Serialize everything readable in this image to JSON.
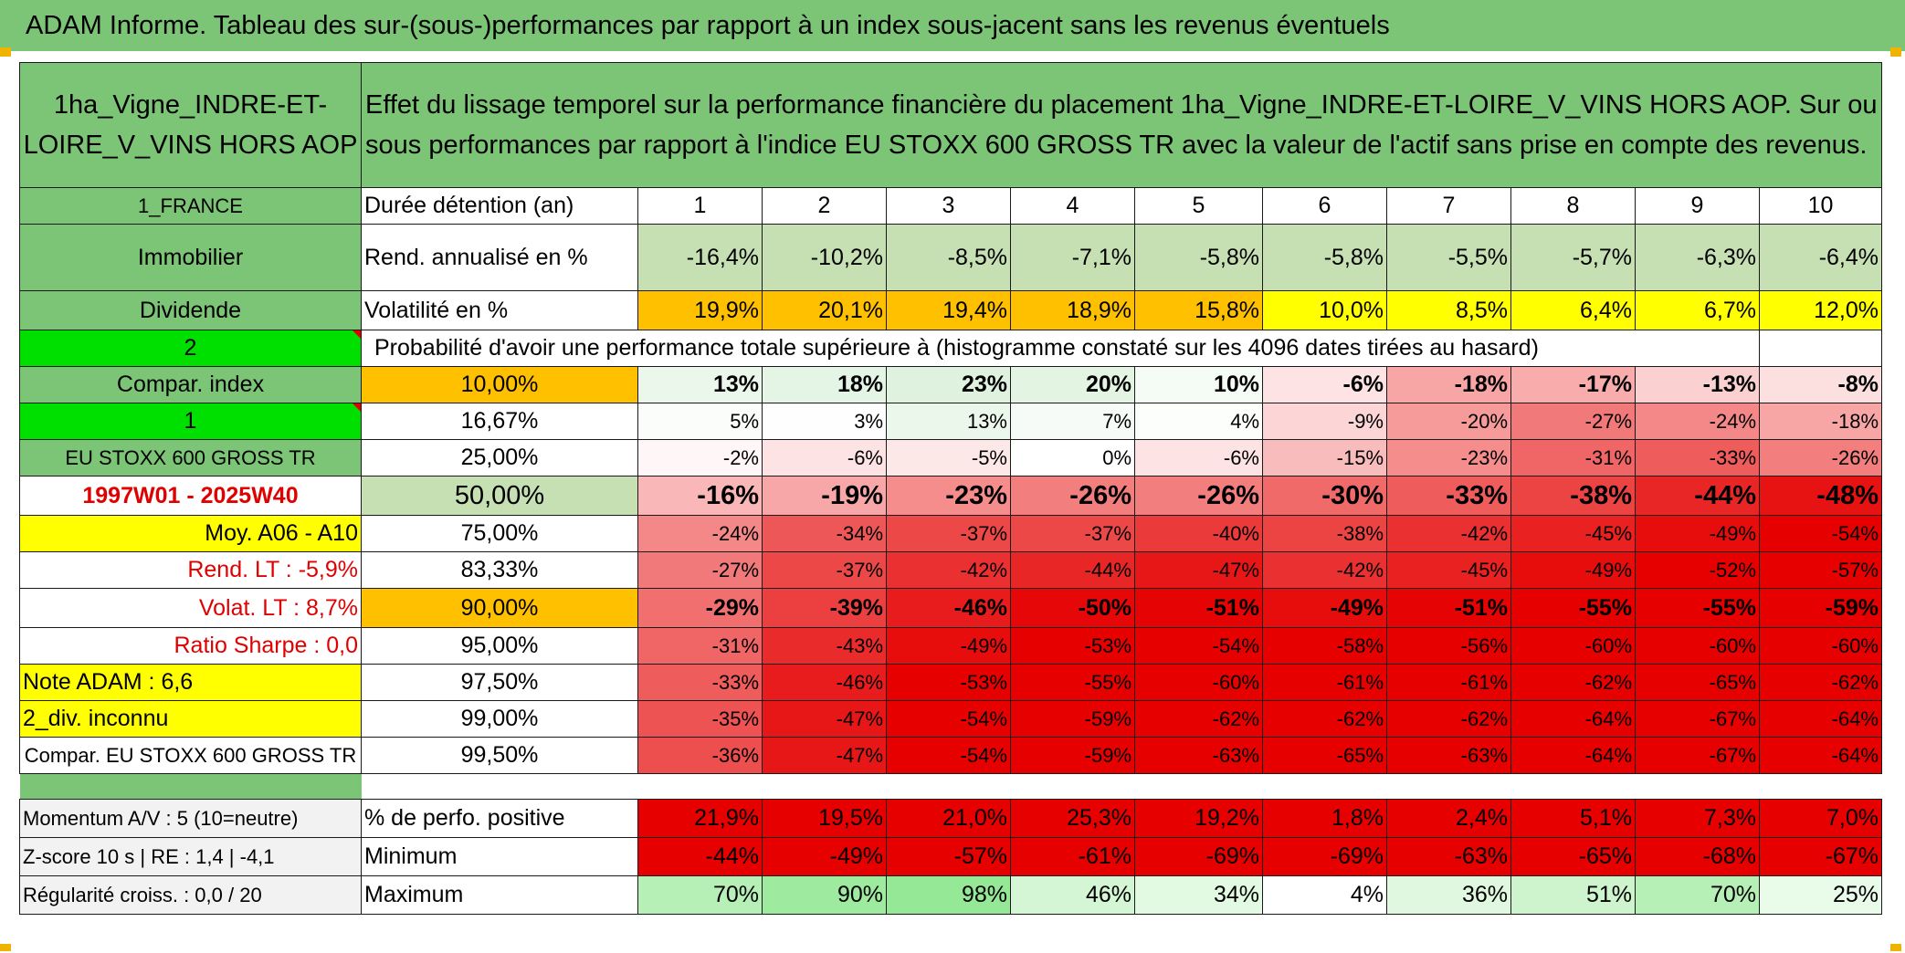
{
  "title": "ADAM Informe. Tableau des sur-(sous-)performances par rapport à un index sous-jacent sans les revenus éventuels",
  "asset_name": "1ha_Vigne_INDRE-ET-LOIRE_V_VINS HORS AOP",
  "description": "Effet du lissage temporel sur la performance financière du placement 1ha_Vigne_INDRE-ET-LOIRE_V_VINS HORS AOP. Sur ou sous performances par rapport à l'indice EU STOXX 600 GROSS TR avec la valeur de l'actif sans prise en compte des revenus.",
  "left_labels": {
    "country": "1_FRANCE",
    "category": "Immobilier",
    "dividend": "Dividende",
    "two": "2",
    "compar_index": "Compar. index",
    "one": "1",
    "index_name": "EU STOXX 600 GROSS TR",
    "period": "1997W01 - 2025W40",
    "moy": "Moy. A06 - A10",
    "rend_lt": "Rend. LT :   -5,9%",
    "volat_lt": "Volat. LT :   8,7%",
    "sharpe": "Ratio Sharpe :    0,0",
    "note": "Note ADAM : 6,6",
    "div_inconnu": "2_div. inconnu",
    "compar_full": "Compar. EU STOXX 600 GROSS TR",
    "momentum": "Momentum A/V : 5 (10=neutre)",
    "zscore": "Z-score 10 s | RE : 1,4 | -4,1",
    "regularite": "Régularité croiss. : 0,0 / 20"
  },
  "row_labels": {
    "duree": "Durée détention (an)",
    "rend": "Rend. annualisé en %",
    "volat": "Volatilité en %",
    "proba": "Probabilité d'avoir une performance totale supérieure à (histogramme constaté sur les 4096 dates tirées au hasard)",
    "pct_pos": "% de perfo. positive",
    "minimum": "Minimum",
    "maximum": "Maximum"
  },
  "years": [
    "1",
    "2",
    "3",
    "4",
    "5",
    "6",
    "7",
    "8",
    "9",
    "10"
  ],
  "rend": [
    "-16,4%",
    "-10,2%",
    "-8,5%",
    "-7,1%",
    "-5,8%",
    "-5,8%",
    "-5,5%",
    "-5,7%",
    "-6,3%",
    "-6,4%"
  ],
  "volat": [
    "19,9%",
    "20,1%",
    "19,4%",
    "18,9%",
    "15,8%",
    "10,0%",
    "8,5%",
    "6,4%",
    "6,7%",
    "12,0%"
  ],
  "volat_colors": [
    "#ffc000",
    "#ffc000",
    "#ffc000",
    "#ffc000",
    "#ffc000",
    "#ffff00",
    "#ffff00",
    "#ffff00",
    "#ffff00",
    "#ffff00"
  ],
  "prob_rows": [
    {
      "threshold": "10,00%",
      "values": [
        "13%",
        "18%",
        "23%",
        "20%",
        "10%",
        "-6%",
        "-18%",
        "-17%",
        "-13%",
        "-8%"
      ],
      "colors": [
        "#ebf7eb",
        "#e5f5e5",
        "#dff2df",
        "#e3f4e3",
        "#f5fbf5",
        "#fde3e3",
        "#f7a5a5",
        "#f8acac",
        "#fad0d0",
        "#fce0e0"
      ]
    },
    {
      "threshold": "16,67%",
      "values": [
        "5%",
        "3%",
        "13%",
        "7%",
        "4%",
        "-9%",
        "-20%",
        "-27%",
        "-24%",
        "-18%"
      ],
      "colors": [
        "#fbfdfb",
        "#fdfefd",
        "#ebf7eb",
        "#f7fbf7",
        "#fcfefc",
        "#fcd6d6",
        "#f69a9a",
        "#f27979",
        "#f48888",
        "#f7a5a5"
      ]
    },
    {
      "threshold": "25,00%",
      "values": [
        "-2%",
        "-6%",
        "-5%",
        "0%",
        "-6%",
        "-15%",
        "-23%",
        "-31%",
        "-33%",
        "-26%"
      ],
      "colors": [
        "#fff7f7",
        "#fde3e3",
        "#fde8e8",
        "#ffffff",
        "#fde3e3",
        "#f9bcbc",
        "#f58d8d",
        "#f06666",
        "#ef5c5c",
        "#f37e7e"
      ]
    },
    {
      "threshold": "50,00%",
      "values": [
        "-16%",
        "-19%",
        "-23%",
        "-26%",
        "-26%",
        "-30%",
        "-33%",
        "-38%",
        "-44%",
        "-48%"
      ],
      "colors": [
        "#f9b7b7",
        "#f7a7a7",
        "#f58d8d",
        "#f37e7e",
        "#f37e7e",
        "#f06a6a",
        "#ef5c5c",
        "#ec4343",
        "#e92626",
        "#e71212"
      ]
    },
    {
      "threshold": "75,00%",
      "values": [
        "-24%",
        "-34%",
        "-37%",
        "-37%",
        "-40%",
        "-38%",
        "-42%",
        "-45%",
        "-49%",
        "-54%"
      ],
      "colors": [
        "#f48888",
        "#ee5757",
        "#ed4848",
        "#ed4848",
        "#eb3a3a",
        "#ec4343",
        "#ea3030",
        "#e92121",
        "#e70d0d",
        "#e60000"
      ]
    },
    {
      "threshold": "83,33%",
      "values": [
        "-27%",
        "-37%",
        "-42%",
        "-44%",
        "-47%",
        "-42%",
        "-45%",
        "-49%",
        "-52%",
        "-57%"
      ],
      "colors": [
        "#f27979",
        "#ed4848",
        "#ea3030",
        "#e92626",
        "#e81717",
        "#ea3030",
        "#e92121",
        "#e70d0d",
        "#e60000",
        "#e60000"
      ]
    },
    {
      "threshold": "90,00%",
      "values": [
        "-29%",
        "-39%",
        "-46%",
        "-50%",
        "-51%",
        "-49%",
        "-51%",
        "-55%",
        "-55%",
        "-59%"
      ],
      "colors": [
        "#f16f6f",
        "#ec3f3f",
        "#e81c1c",
        "#e60808",
        "#e60303",
        "#e70d0d",
        "#e60303",
        "#e60000",
        "#e60000",
        "#e60000"
      ]
    },
    {
      "threshold": "95,00%",
      "values": [
        "-31%",
        "-43%",
        "-49%",
        "-53%",
        "-54%",
        "-58%",
        "-56%",
        "-60%",
        "-60%",
        "-60%"
      ],
      "colors": [
        "#f06666",
        "#ea2b2b",
        "#e70d0d",
        "#e60000",
        "#e60000",
        "#e60000",
        "#e60000",
        "#e60000",
        "#e60000",
        "#e60000"
      ]
    },
    {
      "threshold": "97,50%",
      "values": [
        "-33%",
        "-46%",
        "-53%",
        "-55%",
        "-60%",
        "-61%",
        "-61%",
        "-62%",
        "-65%",
        "-62%"
      ],
      "colors": [
        "#ef5c5c",
        "#e81c1c",
        "#e60000",
        "#e60000",
        "#e60000",
        "#e60000",
        "#e60000",
        "#e60000",
        "#e60000",
        "#e60000"
      ]
    },
    {
      "threshold": "99,00%",
      "values": [
        "-35%",
        "-47%",
        "-54%",
        "-59%",
        "-62%",
        "-62%",
        "-62%",
        "-64%",
        "-67%",
        "-64%"
      ],
      "colors": [
        "#ee5353",
        "#e81717",
        "#e60000",
        "#e60000",
        "#e60000",
        "#e60000",
        "#e60000",
        "#e60000",
        "#e60000",
        "#e60000"
      ]
    },
    {
      "threshold": "99,50%",
      "values": [
        "-36%",
        "-47%",
        "-54%",
        "-59%",
        "-63%",
        "-65%",
        "-63%",
        "-64%",
        "-67%",
        "-64%"
      ],
      "colors": [
        "#ed4e4e",
        "#e81717",
        "#e60000",
        "#e60000",
        "#e60000",
        "#e60000",
        "#e60000",
        "#e60000",
        "#e60000",
        "#e60000"
      ]
    }
  ],
  "pct_pos": [
    "21,9%",
    "19,5%",
    "21,0%",
    "25,3%",
    "19,2%",
    "1,8%",
    "2,4%",
    "5,1%",
    "7,3%",
    "7,0%"
  ],
  "minimum": [
    "-44%",
    "-49%",
    "-57%",
    "-61%",
    "-69%",
    "-69%",
    "-63%",
    "-65%",
    "-68%",
    "-67%"
  ],
  "maximum": [
    "70%",
    "90%",
    "98%",
    "46%",
    "34%",
    "4%",
    "36%",
    "51%",
    "70%",
    "25%"
  ],
  "maximum_colors": [
    "#b6f0b6",
    "#9eea9e",
    "#95e895",
    "#d4f6d4",
    "#e2f9e2",
    "#ffffff",
    "#dff8df",
    "#cdf4cd",
    "#b6f0b6",
    "#e9fbe9"
  ],
  "colors": {
    "green": "#7cc576",
    "light_green": "#c6e0b4",
    "bright_green": "#00e000",
    "yellow": "#ffff00",
    "orange": "#ffc000",
    "red": "#e60000",
    "red_text": "#e00000"
  }
}
